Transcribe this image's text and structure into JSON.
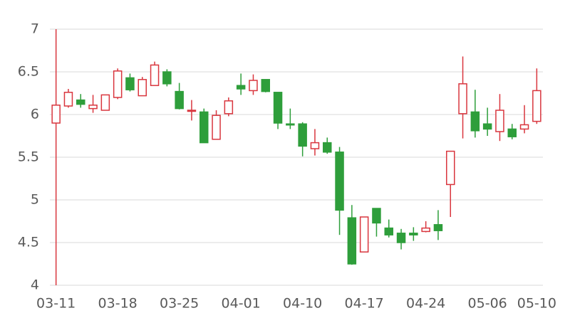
{
  "chart_data": {
    "type": "candlestick",
    "categories": [
      "03-11",
      null,
      null,
      null,
      null,
      "03-18",
      null,
      null,
      null,
      null,
      "03-25",
      null,
      null,
      null,
      null,
      "04-01",
      null,
      null,
      null,
      null,
      "04-10",
      null,
      null,
      null,
      null,
      "04-17",
      null,
      null,
      null,
      null,
      "04-24",
      null,
      null,
      null,
      null,
      "05-06",
      null,
      null,
      null,
      "05-10"
    ],
    "open": [
      5.9,
      6.1,
      6.17,
      6.07,
      6.05,
      6.2,
      6.43,
      6.22,
      6.34,
      6.5,
      6.27,
      6.04,
      6.03,
      5.71,
      6.01,
      6.34,
      6.28,
      6.41,
      6.26,
      5.89,
      5.89,
      5.6,
      5.67,
      5.56,
      4.79,
      4.39,
      4.9,
      4.67,
      4.61,
      4.61,
      4.63,
      4.71,
      5.18,
      6.01,
      6.03,
      5.89,
      5.8,
      5.83,
      5.83,
      5.92
    ],
    "high": [
      7.0,
      6.3,
      6.24,
      6.23,
      6.23,
      6.54,
      6.48,
      6.44,
      6.62,
      6.53,
      6.37,
      6.17,
      6.07,
      6.05,
      6.2,
      6.48,
      6.47,
      6.41,
      6.26,
      6.07,
      5.91,
      5.83,
      5.73,
      5.62,
      4.94,
      4.8,
      4.9,
      4.77,
      4.66,
      4.68,
      4.75,
      4.88,
      5.57,
      6.68,
      6.29,
      6.08,
      6.24,
      5.89,
      6.11,
      6.54
    ],
    "low": [
      4.0,
      6.08,
      6.08,
      6.02,
      6.05,
      6.18,
      6.27,
      6.22,
      6.34,
      6.33,
      6.06,
      5.93,
      5.67,
      5.71,
      5.98,
      6.23,
      6.23,
      6.26,
      5.83,
      5.83,
      5.51,
      5.52,
      5.54,
      4.59,
      4.24,
      4.39,
      4.57,
      4.56,
      4.42,
      4.52,
      4.62,
      4.53,
      4.8,
      5.72,
      5.73,
      5.75,
      5.69,
      5.71,
      5.78,
      5.89
    ],
    "close": [
      6.11,
      6.26,
      6.12,
      6.11,
      6.23,
      6.51,
      6.29,
      6.41,
      6.58,
      6.36,
      6.07,
      6.05,
      5.67,
      5.99,
      6.16,
      6.3,
      6.4,
      6.27,
      5.9,
      5.88,
      5.63,
      5.67,
      5.56,
      4.88,
      4.25,
      4.8,
      4.73,
      4.59,
      4.5,
      4.59,
      4.67,
      4.64,
      5.57,
      6.36,
      5.81,
      5.83,
      6.05,
      5.74,
      5.88,
      6.28
    ],
    "up_color": "#d9363e",
    "down_color": "#2e9e3b",
    "ylim": [
      4,
      7
    ],
    "yticks": [
      4,
      4.5,
      5,
      5.5,
      6,
      6.5,
      7
    ],
    "grid": true
  }
}
